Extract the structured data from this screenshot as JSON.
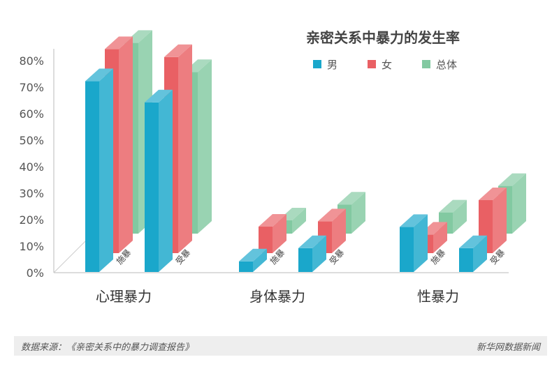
{
  "chart_data": {
    "type": "bar",
    "title": "亲密关系中暴力的发生率",
    "groups": [
      "心理暴力",
      "身体暴力",
      "性暴力"
    ],
    "subgroups": [
      "施暴",
      "受暴"
    ],
    "series": [
      {
        "name": "男",
        "color": "#1aa7cb",
        "values": [
          [
            72,
            64
          ],
          [
            4,
            9
          ],
          [
            17,
            9
          ]
        ]
      },
      {
        "name": "女",
        "color": "#e96064",
        "values": [
          [
            77,
            74
          ],
          [
            10,
            12
          ],
          [
            7,
            20
          ]
        ]
      },
      {
        "name": "总体",
        "color": "#82c9a1",
        "values": [
          [
            72,
            61
          ],
          [
            5,
            11
          ],
          [
            8,
            18
          ]
        ]
      }
    ],
    "yticks": [
      "0%",
      "10%",
      "20%",
      "30%",
      "40%",
      "50%",
      "60%",
      "70%",
      "80%"
    ],
    "ylim": [
      0,
      85
    ],
    "legend_position": "top-right"
  },
  "footer": {
    "source": "数据来源：《亲密关系中的暴力调查报告》",
    "brand": "新华网数据新闻"
  }
}
